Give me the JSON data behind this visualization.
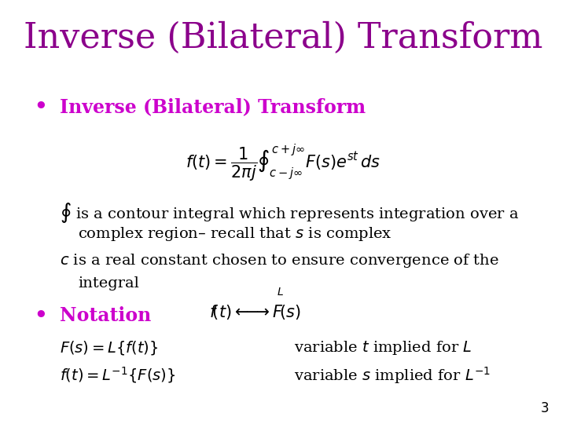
{
  "title": "Inverse (Bilateral) Transform",
  "title_color": "#8B008B",
  "title_fontsize": 32,
  "bg_color": "#FFFFFF",
  "bullet1_text": "Inverse (Bilateral) Transform",
  "bullet1_color": "#CC00CC",
  "bullet1_fontsize": 17,
  "bullet2_text": "Notation",
  "bullet2_color": "#CC00CC",
  "bullet2_fontsize": 17,
  "page_num": "3",
  "text_color": "#000000",
  "body_fontsize": 14
}
